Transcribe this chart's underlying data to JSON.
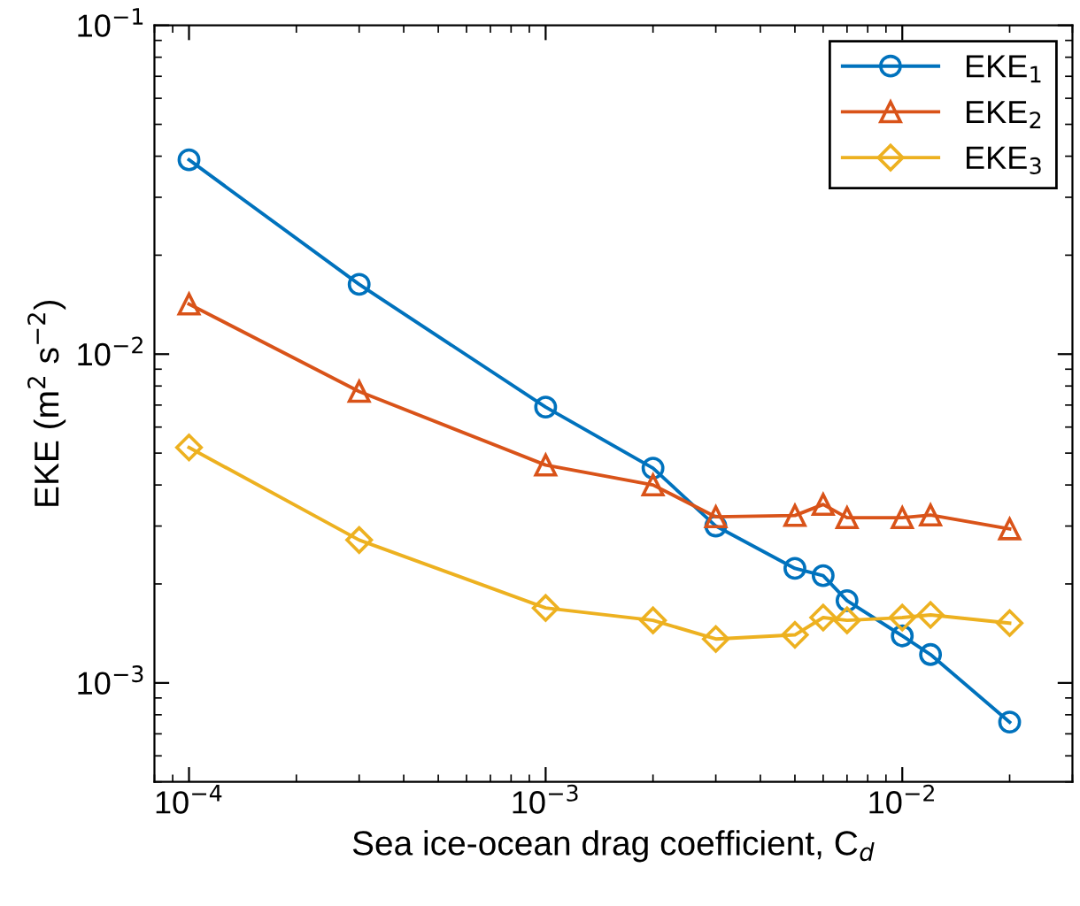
{
  "chart_data": {
    "type": "line",
    "xlabel": "Sea ice-ocean drag coefficient, C$_{d}$",
    "ylabel": "EKE (m$^{2}$ s$^{−2}$)",
    "log": "xy",
    "xlim": [
      8e-05,
      0.03
    ],
    "ylim": [
      0.0005,
      0.1
    ],
    "xticks": [
      {
        "value": 0.0001,
        "label": "10$^{−4}$"
      },
      {
        "value": 0.001,
        "label": "10$^{−3}$"
      },
      {
        "value": 0.01,
        "label": "10$^{−2}$"
      }
    ],
    "yticks": [
      {
        "value": 0.001,
        "label": "10$^{−3}$"
      },
      {
        "value": 0.01,
        "label": "10$^{−2}$"
      },
      {
        "value": 0.1,
        "label": "10$^{−1}$"
      }
    ],
    "x": [
      0.0001,
      0.0003,
      0.001,
      0.002,
      0.003,
      0.005,
      0.006,
      0.007,
      0.01,
      0.012,
      0.02
    ],
    "series": [
      {
        "name": "EKE$_{1}$",
        "color": "#0072bd",
        "marker": "circle",
        "values": [
          0.039,
          0.0163,
          0.0069,
          0.0045,
          0.003,
          0.00223,
          0.00212,
          0.00178,
          0.00139,
          0.00122,
          0.00076
        ]
      },
      {
        "name": "EKE$_{2}$",
        "color": "#d95319",
        "marker": "triangle",
        "values": [
          0.0142,
          0.0077,
          0.0046,
          0.004,
          0.0032,
          0.00323,
          0.00349,
          0.00318,
          0.00318,
          0.00324,
          0.00294
        ]
      },
      {
        "name": "EKE$_{3}$",
        "color": "#edb120",
        "marker": "diamond",
        "values": [
          0.0052,
          0.00272,
          0.00169,
          0.00155,
          0.00136,
          0.0014,
          0.00158,
          0.00155,
          0.00158,
          0.00161,
          0.00152
        ]
      }
    ],
    "legend": "top right",
    "grid": false
  }
}
